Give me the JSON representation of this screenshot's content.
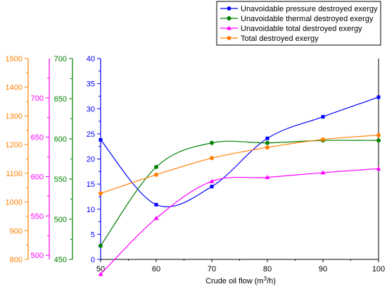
{
  "chart_data": {
    "type": "line",
    "x": [
      50,
      60,
      70,
      80,
      90,
      100
    ],
    "xlim": [
      50,
      100
    ],
    "x_ticks": [
      "50",
      "60",
      "70",
      "80",
      "90",
      "100"
    ],
    "xlabel": {
      "text": "Crude oil flow (m",
      "sup": "3",
      "tail": "/h)"
    },
    "axes": [
      {
        "id": "pressure",
        "color": "#0000ff",
        "ylim": [
          0,
          40
        ],
        "ticks": [
          "0",
          "5",
          "10",
          "15",
          "20",
          "25",
          "30",
          "35",
          "40"
        ]
      },
      {
        "id": "thermal",
        "color": "#008000",
        "ylim": [
          450,
          700
        ],
        "ticks": [
          "450",
          "500",
          "550",
          "600",
          "650",
          "700"
        ]
      },
      {
        "id": "total",
        "color": "#ff00ff",
        "ylim": [
          450,
          750
        ],
        "ticks": [
          "500",
          "550",
          "600",
          "650",
          "700"
        ]
      },
      {
        "id": "destroyed",
        "color": "#ff8000",
        "ylim": [
          800,
          1500
        ],
        "ticks": [
          "800",
          "900",
          "1000",
          "1100",
          "1200",
          "1300",
          "1400",
          "1500"
        ]
      }
    ],
    "series": [
      {
        "name": "Unavoidable pressure destroyed exergy",
        "axis": "pressure",
        "color": "#0000ff",
        "marker": "square",
        "values": [
          23.8,
          10.9,
          14.5,
          24.1,
          28.4,
          32.3
        ]
      },
      {
        "name": "Unavoidable thermal destroyed exergy",
        "axis": "thermal",
        "color": "#008000",
        "marker": "circle",
        "values": [
          467,
          565,
          595,
          595,
          598,
          598
        ]
      },
      {
        "name": "Unavoidable total destroyed exergy",
        "axis": "total",
        "color": "#ff00ff",
        "marker": "triangle",
        "values": [
          476,
          547,
          594,
          599,
          605,
          610
        ]
      },
      {
        "name": "Total destroyed exergy",
        "axis": "destroyed",
        "color": "#ff8000",
        "marker": "circle",
        "values": [
          1030,
          1095,
          1153,
          1190,
          1218,
          1233
        ]
      }
    ],
    "legend_position": "top-right",
    "grid": false
  }
}
